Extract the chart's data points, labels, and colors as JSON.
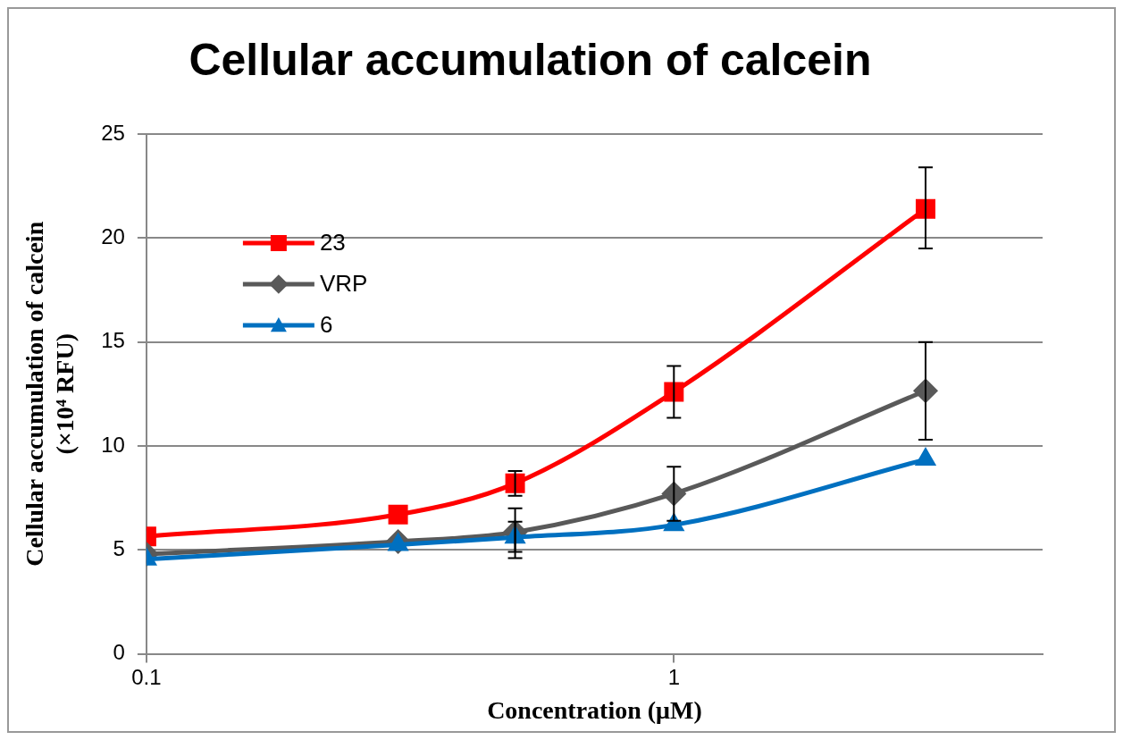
{
  "chart_data": {
    "type": "line",
    "title": "Cellular accumulation of calcein",
    "xlabel": "Concentration (μM)",
    "ylabel": "Cellular accumulation of calcein (×10⁴ RFU)",
    "x": [
      0.1,
      0.3,
      0.5,
      1,
      3
    ],
    "series": [
      {
        "name": "23",
        "color": "#ff0000",
        "marker": "square",
        "values": [
          5.65,
          6.7,
          8.2,
          12.6,
          21.4
        ],
        "errors": [
          null,
          null,
          [
            7.6,
            8.8
          ],
          [
            11.35,
            13.85
          ],
          [
            19.5,
            23.4
          ]
        ]
      },
      {
        "name": "VRP",
        "color": "#595959",
        "marker": "diamond",
        "values": [
          4.8,
          5.4,
          5.85,
          7.7,
          12.65
        ],
        "errors": [
          null,
          null,
          [
            4.6,
            7.0
          ],
          [
            6.4,
            9.0
          ],
          [
            10.3,
            15.0
          ]
        ]
      },
      {
        "name": "6",
        "color": "#0070c0",
        "marker": "triangle",
        "values": [
          4.55,
          5.25,
          5.6,
          6.2,
          9.35
        ],
        "errors": [
          null,
          null,
          [
            4.9,
            6.35
          ],
          null,
          null
        ]
      }
    ],
    "log": "x",
    "xlim": [
      0.1,
      5
    ],
    "xticks": [
      0.1,
      1
    ],
    "ylim": [
      0,
      25
    ],
    "yticks": [
      0,
      5,
      10,
      15,
      20,
      25
    ],
    "grid": "y",
    "legend": "top left"
  }
}
